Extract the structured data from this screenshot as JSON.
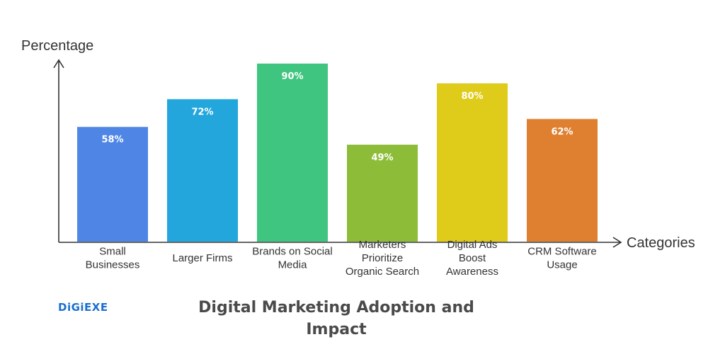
{
  "chart_data": {
    "type": "bar",
    "title": "Digital Marketing Adoption and Impact",
    "ylabel": "Percentage",
    "xlabel": "Categories",
    "ylim": [
      0,
      90
    ],
    "grid": false,
    "categories": [
      [
        "Small",
        "Businesses"
      ],
      [
        "Larger Firms"
      ],
      [
        "Brands on Social",
        "Media"
      ],
      [
        "Marketers",
        "Prioritize",
        "Organic Search"
      ],
      [
        "Digital Ads",
        "Boost",
        "Awareness"
      ],
      [
        "CRM Software",
        "Usage"
      ]
    ],
    "values": [
      58,
      72,
      90,
      49,
      80,
      62
    ],
    "value_labels": [
      "58%",
      "72%",
      "90%",
      "49%",
      "80%",
      "62%"
    ],
    "colors": [
      "#4f86e6",
      "#22a6dc",
      "#3fc57f",
      "#8cbc38",
      "#dfcb19",
      "#de8030"
    ]
  },
  "logo_text": "DiGiEXE"
}
